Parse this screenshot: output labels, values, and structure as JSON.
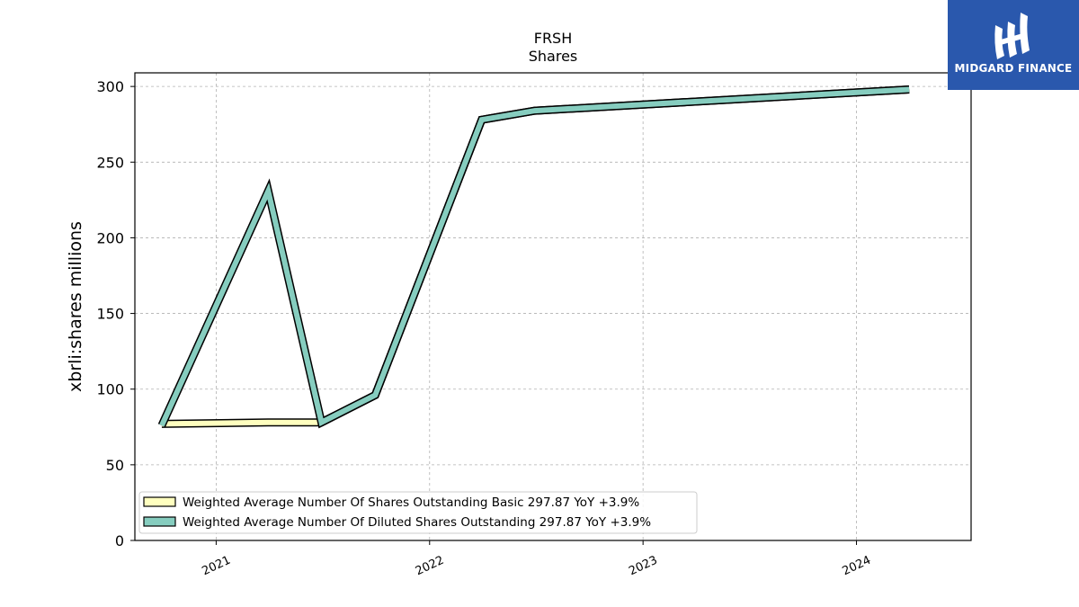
{
  "chart_data": {
    "type": "line",
    "title": "FRSH",
    "subtitle": "Shares",
    "ylabel": "xbrli:shares millions",
    "xlabel": "",
    "ylim": [
      0,
      309
    ],
    "yticks": [
      0,
      50,
      100,
      150,
      200,
      250,
      300
    ],
    "xticks": [
      "2021",
      "2022",
      "2023",
      "2024"
    ],
    "xlim": [
      "2020-08-15",
      "2024-07-15"
    ],
    "grid": true,
    "legend_position": "lower-left",
    "series": [
      {
        "name": "Weighted Average Number Of Shares Outstanding Basic  297.87 YoY +3.9%",
        "color": "#ffffbf",
        "points": [
          {
            "x": "2020-09-30",
            "y": 77
          },
          {
            "x": "2021-03-31",
            "y": 78
          },
          {
            "x": "2021-06-30",
            "y": 78
          },
          {
            "x": "2021-09-30",
            "y": 96
          },
          {
            "x": "2022-03-31",
            "y": 278
          },
          {
            "x": "2022-06-30",
            "y": 284
          },
          {
            "x": "2024-03-31",
            "y": 298
          }
        ]
      },
      {
        "name": "Weighted Average Number Of Diluted Shares Outstanding  297.87 YoY +3.9%",
        "color": "#86cdbf",
        "points": [
          {
            "x": "2020-09-30",
            "y": 76
          },
          {
            "x": "2021-03-31",
            "y": 231
          },
          {
            "x": "2021-06-30",
            "y": 78
          },
          {
            "x": "2021-09-30",
            "y": 96
          },
          {
            "x": "2022-03-31",
            "y": 278
          },
          {
            "x": "2022-06-30",
            "y": 284
          },
          {
            "x": "2024-03-31",
            "y": 298
          }
        ]
      }
    ]
  },
  "logo": {
    "text": "MIDGARD FINANCE",
    "color": "#2a58ad"
  }
}
